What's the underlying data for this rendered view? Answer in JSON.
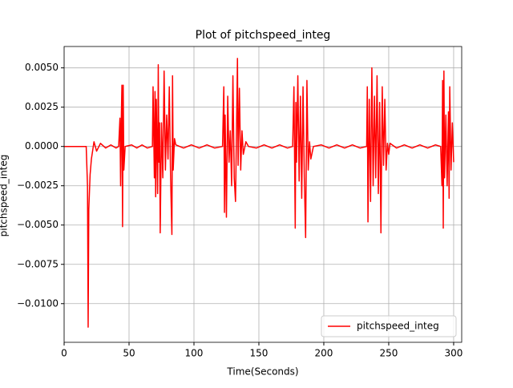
{
  "chart_data": {
    "type": "line",
    "title": "Plot of pitchspeed_integ",
    "x_label": "Time(Seconds)",
    "y_label": "pitchspeed_integ",
    "x": [
      0,
      17,
      18,
      18.5,
      19,
      20,
      21,
      23,
      25,
      28,
      32,
      36,
      40,
      42,
      43,
      43.5,
      44,
      44.5,
      45,
      45.5,
      46,
      47,
      52,
      56,
      60,
      64,
      68,
      68.5,
      69.5,
      70,
      70.5,
      71,
      72,
      72.5,
      73,
      73.5,
      74,
      75,
      76,
      77,
      78,
      79,
      80,
      81,
      82,
      83,
      83.5,
      84,
      85,
      86,
      92,
      98,
      104,
      110,
      116,
      122,
      123,
      123.5,
      124,
      125,
      126,
      127,
      128,
      129,
      130,
      131,
      132,
      133,
      133.5,
      134,
      135,
      136,
      137,
      138,
      140,
      142,
      148,
      154,
      160,
      166,
      172,
      176,
      177,
      178,
      178.5,
      179,
      180,
      181,
      182,
      183,
      184,
      185,
      186,
      187,
      188,
      189,
      190,
      192,
      198,
      204,
      210,
      216,
      222,
      228,
      233,
      233.5,
      234,
      235,
      236,
      237,
      238,
      239,
      240,
      241,
      242,
      243,
      244,
      245,
      246,
      247,
      248,
      249,
      250,
      251,
      256,
      262,
      268,
      274,
      280,
      286,
      290,
      291,
      291.5,
      292,
      292.5,
      293,
      294,
      295,
      296,
      296.5,
      297,
      298,
      299,
      300
    ],
    "series": [
      {
        "name": "pitchspeed_integ",
        "color": "#ff0000",
        "values": [
          0,
          0,
          -0.0025,
          -0.0115,
          -0.004,
          -0.0018,
          -0.0008,
          0.0003,
          -0.0003,
          0.0002,
          -0.0001,
          0.0001,
          -0.0001,
          0,
          0.0018,
          -0.0025,
          0.0015,
          0.0039,
          -0.0051,
          0.0039,
          -0.0015,
          0,
          0.0001,
          -0.0001,
          0.0001,
          -0.0001,
          0,
          0.0038,
          -0.002,
          0.0035,
          -0.0032,
          0.003,
          -0.003,
          0.0052,
          -0.001,
          0.0015,
          -0.0055,
          0.0015,
          -0.002,
          0.0048,
          -0.0015,
          0.002,
          -0.0008,
          0.0038,
          -0.002,
          -0.0056,
          0.0045,
          -0.0015,
          0.0005,
          0.0001,
          -0.0001,
          0.0001,
          -0.0001,
          0.0001,
          -0.0001,
          0,
          0.0038,
          -0.0042,
          0.002,
          -0.0045,
          0.0032,
          -0.001,
          0.001,
          -0.0025,
          0.0045,
          -0.002,
          -0.0035,
          0.0025,
          0.0056,
          -0.0012,
          0.0037,
          -0.0015,
          0.001,
          -0.0005,
          0.0003,
          0,
          -0.0001,
          0.0001,
          -0.0001,
          0.0001,
          -0.0001,
          0,
          0.0038,
          -0.0052,
          0.0028,
          -0.001,
          0.0045,
          -0.0022,
          0.0032,
          -0.0033,
          0.0038,
          -0.002,
          -0.0058,
          0.0042,
          -0.0015,
          0.0003,
          -0.0008,
          0,
          0.0001,
          -0.0001,
          0.0001,
          -0.0001,
          0.0001,
          -0.0001,
          0,
          0.0038,
          -0.0048,
          0.003,
          -0.0035,
          0.005,
          -0.0025,
          0.0032,
          -0.002,
          0.0045,
          -0.003,
          0.0028,
          -0.0055,
          0.0038,
          -0.0012,
          0.003,
          -0.0015,
          0.0002,
          -0.0005,
          0.0002,
          -0.0001,
          0.0001,
          -0.0001,
          0.0001,
          -0.0001,
          0.0001,
          0,
          -0.0025,
          0.0042,
          -0.0052,
          0.0048,
          -0.002,
          0.002,
          -0.0025,
          0.0022,
          -0.0033,
          0.0038,
          -0.0015,
          0.0015,
          -0.001
        ]
      }
    ],
    "xlim": [
      0,
      306.2
    ],
    "ylim": [
      -0.01246,
      0.00636
    ],
    "xticks": [
      0,
      50,
      100,
      150,
      200,
      250,
      300
    ],
    "yticks": [
      {
        "value": -0.01,
        "label": "−0.0100"
      },
      {
        "value": -0.0075,
        "label": "−0.0075"
      },
      {
        "value": -0.005,
        "label": "−0.0050"
      },
      {
        "value": -0.0025,
        "label": "−0.0025"
      },
      {
        "value": 0,
        "label": "0.0000"
      },
      {
        "value": 0.0025,
        "label": "0.0025"
      },
      {
        "value": 0.005,
        "label": "0.0050"
      }
    ],
    "grid": true,
    "legend": "lower right"
  }
}
